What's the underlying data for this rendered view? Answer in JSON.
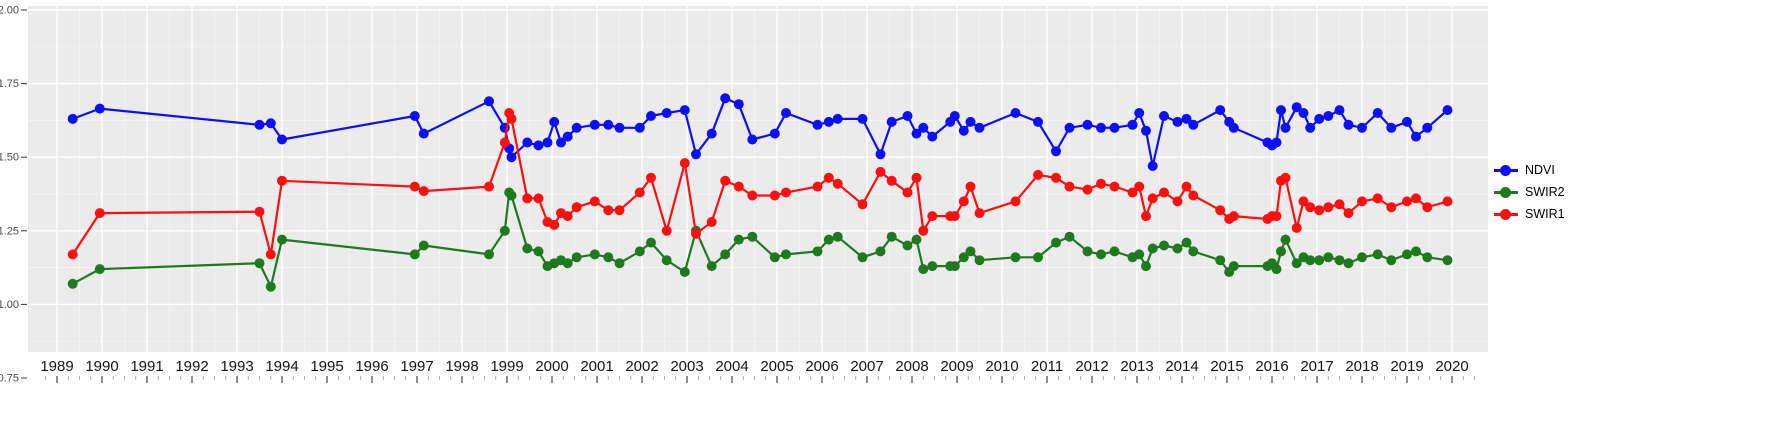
{
  "chart_data": {
    "type": "line",
    "title": "",
    "xlabel": "",
    "ylabel": "",
    "x_range": [
      1988.7,
      2020.6
    ],
    "ylim": [
      0.75,
      2.0
    ],
    "grid": true,
    "legend_position": "right",
    "panel_bg": "#ebebeb",
    "grid_color": "#ffffff",
    "tick_color": "#333333",
    "axis_label_color": "#4d4d4d",
    "x_label_color": "#141414",
    "x_ticks": [
      "1989",
      "1990",
      "1991",
      "1992",
      "1993",
      "1994",
      "1995",
      "1996",
      "1997",
      "1998",
      "1999",
      "2000",
      "2001",
      "2002",
      "2003",
      "2004",
      "2005",
      "2006",
      "2007",
      "2008",
      "2009",
      "2010",
      "2011",
      "2012",
      "2013",
      "2014",
      "2015",
      "2016",
      "2017",
      "2018",
      "2019",
      "2020"
    ],
    "y_ticks": [
      "2.00",
      "1.75",
      "1.50",
      "1.25",
      "1.00",
      "0.75"
    ],
    "x": [
      1989.35,
      1989.95,
      1993.5,
      1993.75,
      1994.0,
      1996.95,
      1997.15,
      1998.6,
      1998.95,
      1999.05,
      1999.1,
      1999.45,
      1999.7,
      1999.9,
      2000.05,
      2000.2,
      2000.35,
      2000.55,
      2000.95,
      2001.25,
      2001.5,
      2001.95,
      2002.2,
      2002.55,
      2002.95,
      2003.2,
      2003.55,
      2003.85,
      2004.15,
      2004.45,
      2004.95,
      2005.2,
      2005.9,
      2006.15,
      2006.35,
      2006.9,
      2007.3,
      2007.55,
      2007.9,
      2008.1,
      2008.25,
      2008.45,
      2008.85,
      2008.95,
      2009.15,
      2009.3,
      2009.5,
      2010.3,
      2010.8,
      2011.2,
      2011.5,
      2011.9,
      2012.2,
      2012.5,
      2012.9,
      2013.05,
      2013.2,
      2013.35,
      2013.6,
      2013.9,
      2014.1,
      2014.25,
      2014.85,
      2015.05,
      2015.15,
      2015.9,
      2016.0,
      2016.1,
      2016.2,
      2016.3,
      2016.55,
      2016.7,
      2016.85,
      2017.05,
      2017.25,
      2017.5,
      2017.7,
      2018.0,
      2018.35,
      2018.65,
      2019.0,
      2019.2,
      2019.45,
      2019.9
    ],
    "series": [
      {
        "name": "NDVI",
        "color": "#0d0dff",
        "values": [
          1.63,
          1.665,
          1.61,
          1.615,
          1.56,
          1.64,
          1.58,
          1.69,
          1.6,
          1.53,
          1.5,
          1.55,
          1.54,
          1.55,
          1.62,
          1.55,
          1.57,
          1.6,
          1.61,
          1.61,
          1.6,
          1.6,
          1.64,
          1.65,
          1.66,
          1.51,
          1.58,
          1.7,
          1.68,
          1.56,
          1.58,
          1.65,
          1.61,
          1.62,
          1.63,
          1.63,
          1.51,
          1.62,
          1.64,
          1.58,
          1.6,
          1.57,
          1.62,
          1.64,
          1.59,
          1.62,
          1.6,
          1.65,
          1.62,
          1.52,
          1.6,
          1.61,
          1.6,
          1.6,
          1.61,
          1.65,
          1.59,
          1.47,
          1.64,
          1.62,
          1.63,
          1.61,
          1.66,
          1.62,
          1.6,
          1.55,
          1.54,
          1.55,
          1.66,
          1.6,
          1.67,
          1.65,
          1.6,
          1.63,
          1.64,
          1.66,
          1.61,
          1.6,
          1.65,
          1.6,
          1.62,
          1.57,
          1.6,
          1.66
        ]
      },
      {
        "name": "SWIR2",
        "color": "#1f7a1f",
        "values": [
          1.07,
          1.12,
          1.14,
          1.06,
          1.22,
          1.17,
          1.2,
          1.17,
          1.25,
          1.38,
          1.37,
          1.19,
          1.18,
          1.13,
          1.14,
          1.15,
          1.14,
          1.16,
          1.17,
          1.16,
          1.14,
          1.18,
          1.21,
          1.15,
          1.11,
          1.25,
          1.13,
          1.17,
          1.22,
          1.23,
          1.16,
          1.17,
          1.18,
          1.22,
          1.23,
          1.16,
          1.18,
          1.23,
          1.2,
          1.22,
          1.12,
          1.13,
          1.13,
          1.13,
          1.16,
          1.18,
          1.15,
          1.16,
          1.16,
          1.21,
          1.23,
          1.18,
          1.17,
          1.18,
          1.16,
          1.17,
          1.13,
          1.19,
          1.2,
          1.19,
          1.21,
          1.18,
          1.15,
          1.11,
          1.13,
          1.13,
          1.14,
          1.12,
          1.18,
          1.22,
          1.14,
          1.16,
          1.15,
          1.15,
          1.16,
          1.15,
          1.14,
          1.16,
          1.17,
          1.15,
          1.17,
          1.18,
          1.16,
          1.15
        ]
      },
      {
        "name": "SWIR1",
        "color": "#ff0f0f",
        "values": [
          1.17,
          1.31,
          1.315,
          1.17,
          1.42,
          1.4,
          1.385,
          1.4,
          1.55,
          1.65,
          1.63,
          1.36,
          1.36,
          1.28,
          1.27,
          1.31,
          1.3,
          1.33,
          1.35,
          1.32,
          1.32,
          1.38,
          1.43,
          1.25,
          1.48,
          1.24,
          1.28,
          1.42,
          1.4,
          1.37,
          1.37,
          1.38,
          1.4,
          1.43,
          1.41,
          1.34,
          1.45,
          1.42,
          1.38,
          1.43,
          1.25,
          1.3,
          1.3,
          1.3,
          1.35,
          1.4,
          1.31,
          1.35,
          1.44,
          1.43,
          1.4,
          1.39,
          1.41,
          1.4,
          1.38,
          1.4,
          1.3,
          1.36,
          1.38,
          1.35,
          1.4,
          1.37,
          1.32,
          1.29,
          1.3,
          1.29,
          1.3,
          1.3,
          1.42,
          1.43,
          1.26,
          1.35,
          1.33,
          1.32,
          1.33,
          1.34,
          1.31,
          1.35,
          1.36,
          1.33,
          1.35,
          1.36,
          1.33,
          1.35
        ]
      }
    ]
  }
}
